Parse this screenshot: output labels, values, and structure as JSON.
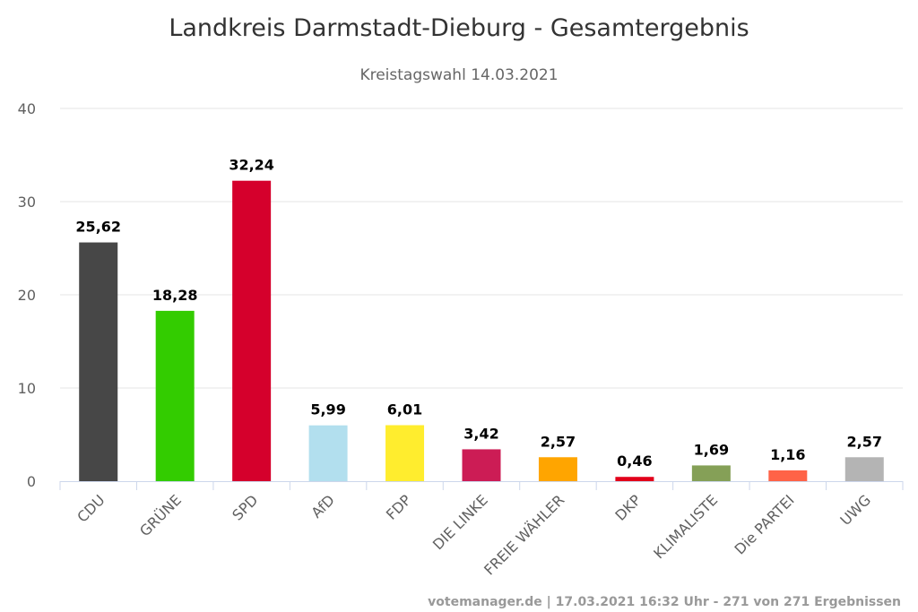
{
  "chart_data": {
    "type": "bar",
    "title": "Landkreis Darmstadt-Dieburg - Gesamtergebnis",
    "subtitle": "Kreistagswahl 14.03.2021",
    "xlabel": "",
    "ylabel": "",
    "ylim": [
      0,
      40
    ],
    "yticks": [
      "0",
      "10",
      "20",
      "30",
      "40"
    ],
    "ytick_values": [
      0,
      10,
      20,
      30,
      40
    ],
    "grid": true,
    "legend": "none",
    "categories": [
      "CDU",
      "GRÜNE",
      "SPD",
      "AfD",
      "FDP",
      "DIE LINKE",
      "FREIE WÄHLER",
      "DKP",
      "KLIMALISTE",
      "Die PARTEI",
      "UWG"
    ],
    "values": [
      25.62,
      18.28,
      32.24,
      5.99,
      6.01,
      3.42,
      2.57,
      0.46,
      1.69,
      1.16,
      2.57
    ],
    "data_labels": [
      "25,62",
      "18,28",
      "32,24",
      "5,99",
      "6,01",
      "3,42",
      "2,57",
      "0,46",
      "1,69",
      "1,16",
      "2,57"
    ],
    "colors": [
      "#474747",
      "#33cc00",
      "#d5002c",
      "#b2dfee",
      "#ffed2e",
      "#cc1c55",
      "#ffa500",
      "#e2001a",
      "#85a057",
      "#ff6347",
      "#b4b4b4"
    ],
    "credits": "votemanager.de | 17.03.2021 16:32 Uhr - 271 von 271 Ergebnissen"
  }
}
